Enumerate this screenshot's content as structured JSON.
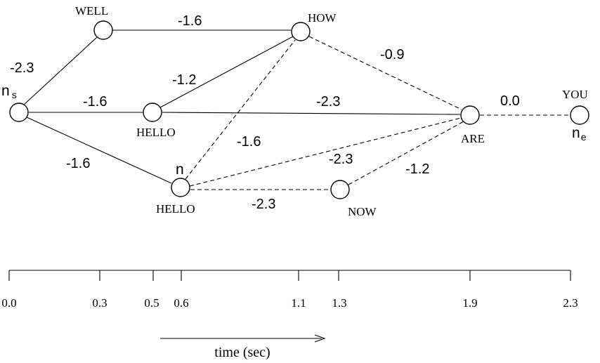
{
  "diagram": {
    "nodes": [
      {
        "id": "ns",
        "word": "",
        "symbol": "n",
        "subscript": "s"
      },
      {
        "id": "well",
        "word": "WELL"
      },
      {
        "id": "how",
        "word": "HOW"
      },
      {
        "id": "hello1",
        "word": "HELLO"
      },
      {
        "id": "hello2",
        "word": "HELLO",
        "symbol": "n"
      },
      {
        "id": "are",
        "word": "ARE"
      },
      {
        "id": "now",
        "word": "NOW"
      },
      {
        "id": "you",
        "word": "YOU",
        "symbol": "n",
        "subscript": "e"
      }
    ],
    "edges": [
      {
        "from": "ns",
        "to": "well",
        "score": "-2.3",
        "style": "solid"
      },
      {
        "from": "well",
        "to": "how",
        "score": "-1.6",
        "style": "solid"
      },
      {
        "from": "ns",
        "to": "hello1",
        "score": "-1.6",
        "style": "solid"
      },
      {
        "from": "hello1",
        "to": "how",
        "score": "-1.2",
        "style": "solid"
      },
      {
        "from": "hello1",
        "to": "are",
        "score": "-2.3",
        "style": "solid"
      },
      {
        "from": "ns",
        "to": "hello2",
        "score": "-1.6",
        "style": "solid"
      },
      {
        "from": "hello2",
        "to": "how",
        "score": "-1.6",
        "style": "dashed"
      },
      {
        "from": "how",
        "to": "are",
        "score": "-0.9",
        "style": "dashed"
      },
      {
        "from": "hello2",
        "to": "are",
        "score": "-2.3",
        "style": "dashed"
      },
      {
        "from": "hello2",
        "to": "now",
        "score": "-2.3",
        "style": "dashed"
      },
      {
        "from": "now",
        "to": "are",
        "score": "-1.2",
        "style": "dashed"
      },
      {
        "from": "are",
        "to": "you",
        "score": "0.0",
        "style": "dashed"
      }
    ]
  },
  "timeline": {
    "ticks": [
      "0.0",
      "0.3",
      "0.5",
      "0.6",
      "1.1",
      "1.3",
      "1.9",
      "2.3"
    ],
    "caption": "time (sec)"
  }
}
